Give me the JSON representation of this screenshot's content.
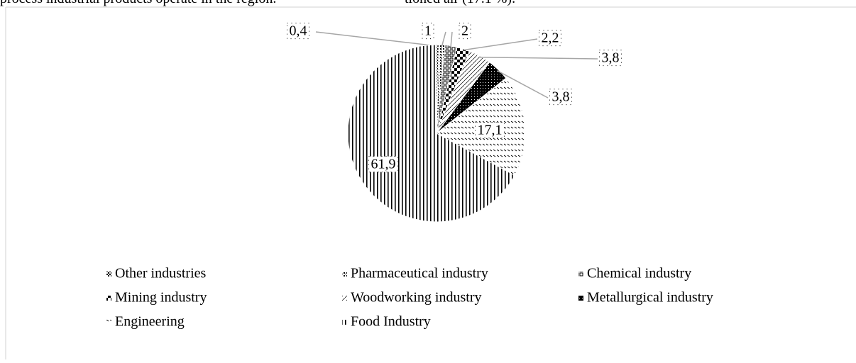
{
  "page_text": [
    "process industrial products operate in the region.",
    "tioned air (17.1 %)."
  ],
  "chart_data": {
    "type": "pie",
    "categories": [
      "Other industries",
      "Pharmaceutical industry",
      "Chemical  industry",
      "Mining industry",
      "Woodworking industry",
      "Metallurgical industry",
      "Engineering",
      "Food Industry"
    ],
    "values": [
      0.4,
      1,
      2,
      2.2,
      3.8,
      3.8,
      17.1,
      61.9
    ],
    "value_labels": [
      "0,4",
      "1",
      "2",
      "2,2",
      "3,8",
      "3,8",
      "17,1",
      "61,9"
    ],
    "legend": "bottom"
  }
}
